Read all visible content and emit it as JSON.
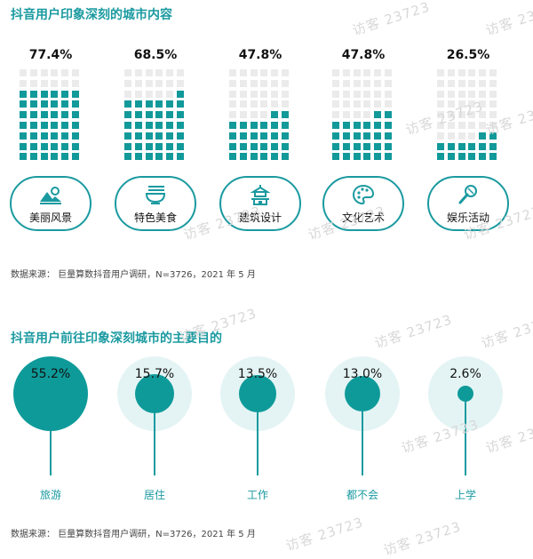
{
  "title1": "抖音用户印象深刻的城市内容",
  "title2": "抖音用户前往印象深刻城市的主要目的",
  "source1": "数据来源：  巨量算数抖音用户调研，N=3726，2021 年 5 月",
  "source2": "数据来源：  巨量算数抖音用户调研，N=3726，2021 年 5 月",
  "watermark": "访客 23723",
  "colors": {
    "accent": "#1a9aa0",
    "filled": "#12999a",
    "empty": "#ebebeb",
    "bubble_bg": "#e4f4f4"
  },
  "chart_data": [
    {
      "type": "waffle",
      "title": "抖音用户印象深刻的城市内容",
      "grid": {
        "rows": 9,
        "cols": 6
      },
      "categories": [
        "美丽风景",
        "特色美食",
        "建筑设计",
        "文化艺术",
        "娱乐活动"
      ],
      "values": [
        77.4,
        68.5,
        47.8,
        47.8,
        26.5
      ],
      "value_labels": [
        "77.4%",
        "68.5%",
        "47.8%",
        "47.8%",
        "26.5%"
      ],
      "icons": [
        "landscape-icon",
        "noodle-bowl-icon",
        "pagoda-icon",
        "palette-icon",
        "microphone-icon"
      ]
    },
    {
      "type": "bubble",
      "title": "抖音用户前往印象深刻城市的主要目的",
      "categories": [
        "旅游",
        "居住",
        "工作",
        "都不会",
        "上学"
      ],
      "values": [
        55.2,
        15.7,
        13.5,
        13.0,
        2.6
      ],
      "value_labels": [
        "55.2%",
        "15.7%",
        "13.5%",
        "13.0%",
        "2.6%"
      ]
    }
  ]
}
